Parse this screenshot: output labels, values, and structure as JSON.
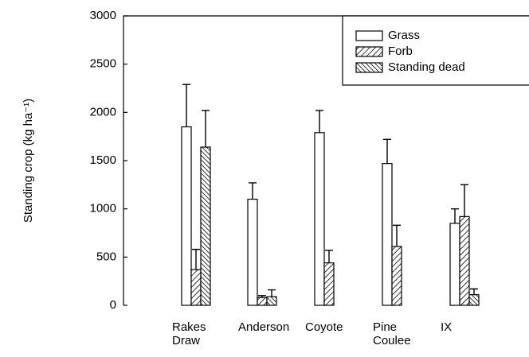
{
  "chart_data": {
    "type": "bar",
    "ylabel": "Standing crop (kg ha⁻¹)",
    "categories": [
      "Rakes Draw",
      "Anderson",
      "Coyote",
      "Pine Coulee",
      "IX"
    ],
    "series": [
      {
        "name": "Grass",
        "color": "#000000",
        "hatch": "none",
        "values": [
          1850,
          1100,
          1790,
          1470,
          850
        ],
        "errors": [
          440,
          170,
          230,
          250,
          150
        ]
      },
      {
        "name": "Forb",
        "color": "#000000",
        "hatch": "/",
        "values": [
          370,
          80,
          440,
          610,
          920
        ],
        "errors": [
          210,
          20,
          130,
          220,
          330
        ]
      },
      {
        "name": "Standing dead",
        "color": "#000000",
        "hatch": "\\",
        "values": [
          1640,
          90,
          null,
          null,
          110
        ],
        "errors": [
          380,
          70,
          null,
          null,
          60
        ]
      }
    ],
    "ylim": [
      0,
      3000
    ],
    "yticks": [
      0,
      500,
      1000,
      1500,
      2000,
      2500,
      3000
    ],
    "legend": "top-right"
  }
}
